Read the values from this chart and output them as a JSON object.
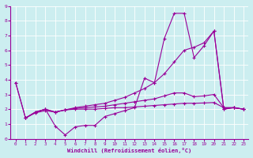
{
  "xlabel": "Windchill (Refroidissement éolien,°C)",
  "bg_color": "#cceef0",
  "line_color": "#990099",
  "grid_color": "#bbdddd",
  "xlim": [
    -0.5,
    23.5
  ],
  "ylim": [
    0,
    9
  ],
  "xticks": [
    0,
    1,
    2,
    3,
    4,
    5,
    6,
    7,
    8,
    9,
    10,
    11,
    12,
    13,
    14,
    15,
    16,
    17,
    18,
    19,
    20,
    21,
    22,
    23
  ],
  "yticks": [
    0,
    1,
    2,
    3,
    4,
    5,
    6,
    7,
    8,
    9
  ],
  "series": [
    {
      "x": [
        0,
        1,
        2,
        3,
        4,
        5,
        6,
        7,
        8,
        9,
        10,
        11,
        12,
        13,
        14,
        15,
        16,
        17,
        18,
        19,
        20,
        21,
        22,
        23
      ],
      "y": [
        3.8,
        1.4,
        1.8,
        2.0,
        0.85,
        0.25,
        0.8,
        0.9,
        0.9,
        1.5,
        1.7,
        1.9,
        2.1,
        4.1,
        3.8,
        6.8,
        8.5,
        8.5,
        5.5,
        6.3,
        7.3,
        2.0,
        2.1,
        2.0
      ]
    },
    {
      "x": [
        0,
        1,
        2,
        3,
        4,
        5,
        6,
        7,
        8,
        9,
        10,
        11,
        12,
        13,
        14,
        15,
        16,
        17,
        18,
        19,
        20,
        21,
        22,
        23
      ],
      "y": [
        3.8,
        1.4,
        1.8,
        2.0,
        1.8,
        1.95,
        2.1,
        2.2,
        2.3,
        2.4,
        2.6,
        2.8,
        3.1,
        3.4,
        3.8,
        4.4,
        5.2,
        6.0,
        6.2,
        6.5,
        7.3,
        2.0,
        2.1,
        2.0
      ]
    },
    {
      "x": [
        1,
        2,
        3,
        4,
        5,
        6,
        7,
        8,
        9,
        10,
        11,
        12,
        13,
        14,
        15,
        16,
        17,
        18,
        19,
        20,
        21,
        22,
        23
      ],
      "y": [
        1.4,
        1.8,
        2.0,
        1.8,
        1.95,
        2.05,
        2.1,
        2.15,
        2.2,
        2.3,
        2.4,
        2.5,
        2.6,
        2.7,
        2.9,
        3.1,
        3.1,
        2.85,
        2.9,
        3.0,
        2.1,
        2.1,
        2.0
      ]
    },
    {
      "x": [
        1,
        2,
        3,
        4,
        5,
        6,
        7,
        8,
        9,
        10,
        11,
        12,
        13,
        14,
        15,
        16,
        17,
        18,
        19,
        20,
        21,
        22,
        23
      ],
      "y": [
        1.4,
        1.75,
        1.9,
        1.8,
        1.95,
        2.0,
        2.0,
        2.0,
        2.05,
        2.1,
        2.1,
        2.15,
        2.2,
        2.25,
        2.3,
        2.35,
        2.4,
        2.4,
        2.42,
        2.45,
        2.1,
        2.1,
        2.0
      ]
    }
  ]
}
